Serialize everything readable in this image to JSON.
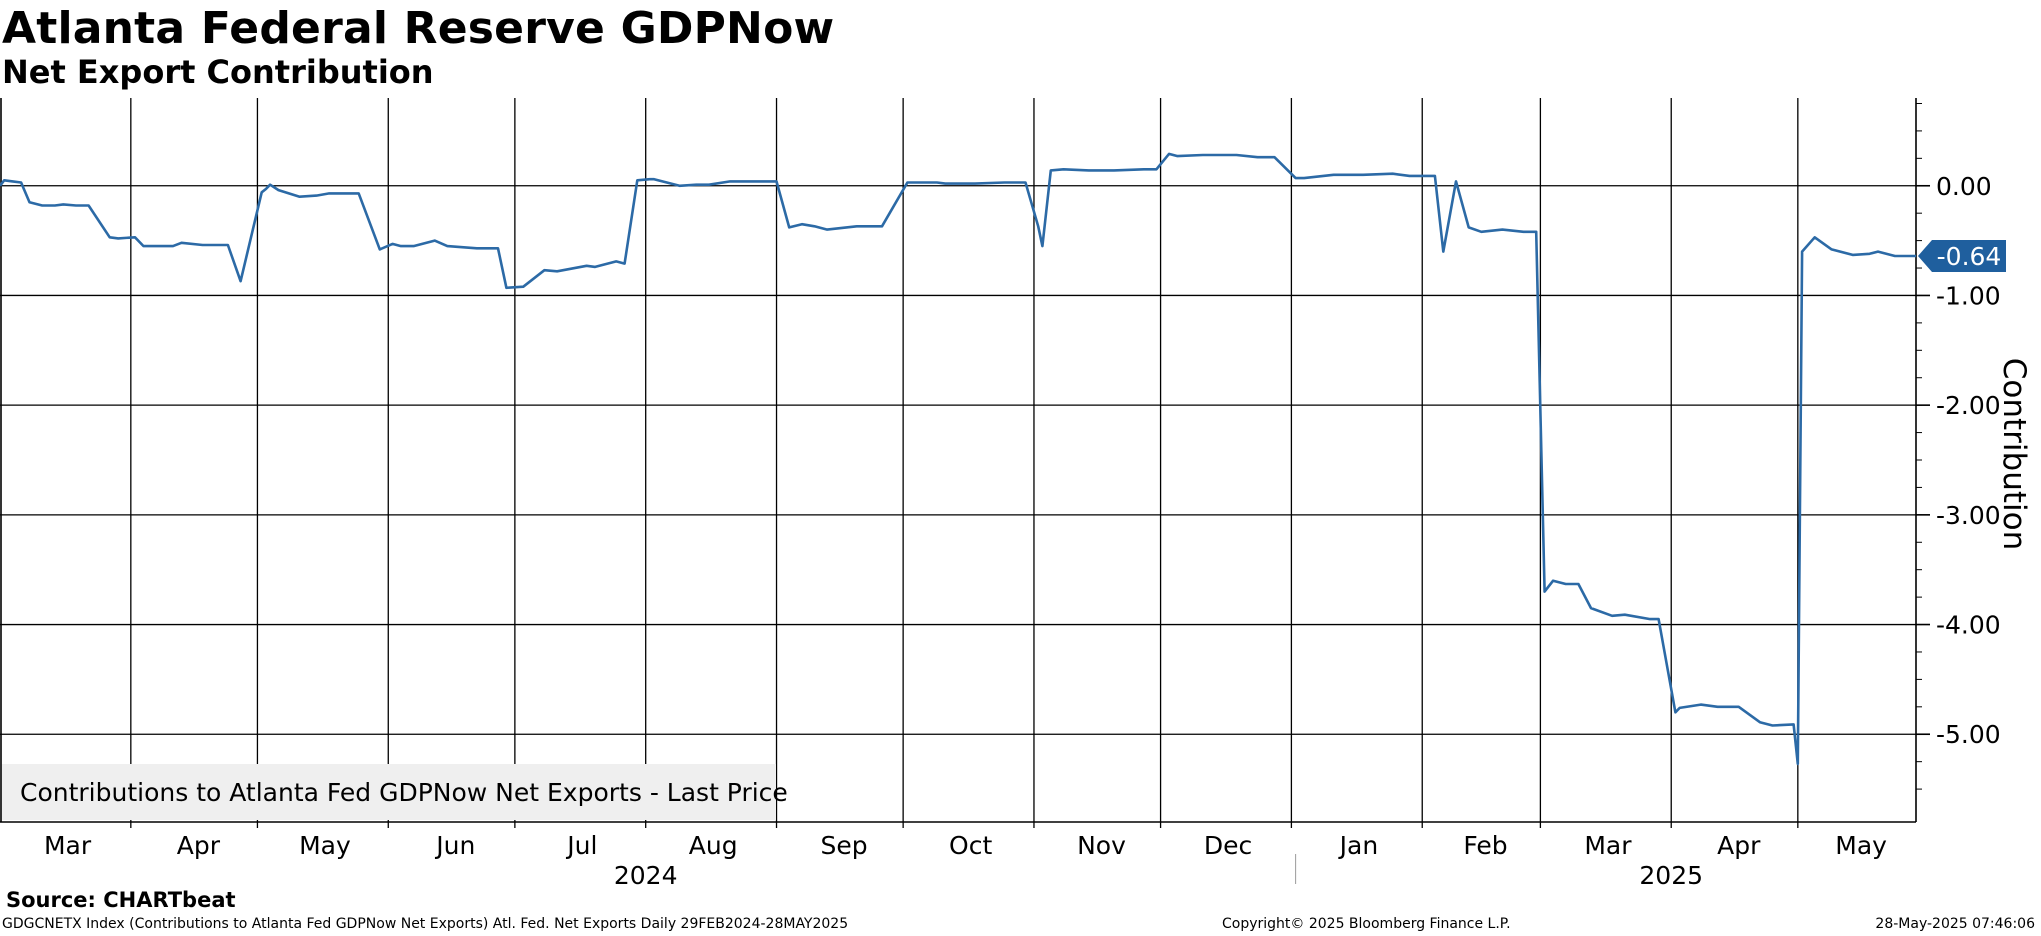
{
  "header": {
    "title": "Atlanta Federal Reserve GDPNow",
    "subtitle": "Net Export Contribution"
  },
  "legend": {
    "label": "Contributions to Atlanta Fed GDPNow Net Exports - Last Price"
  },
  "source": "Source: CHARTbeat",
  "footer": {
    "left": "GDGCNETX Index (Contributions to Atlanta Fed GDPNow Net Exports) Atl. Fed. Net Exports  Daily 29FEB2024-28MAY2025",
    "middle": "Copyright© 2025 Bloomberg Finance L.P.",
    "right": "28-May-2025 07:46:06"
  },
  "colors": {
    "series": "#2c6aa6",
    "grid": "#000000",
    "badge": "#1f5f9e",
    "legend_bg": "#efefef"
  },
  "chart_data": {
    "type": "line",
    "title": "Atlanta Federal Reserve GDPNow",
    "subtitle": "Net Export Contribution",
    "xlabel": "",
    "ylabel": "Contribution",
    "x_range": [
      "2024-02-29",
      "2025-05-28"
    ],
    "ylim": [
      -5.8,
      0.8
    ],
    "yticks": [
      0,
      -1,
      -2,
      -3,
      -4,
      -5
    ],
    "ytick_labels": [
      "0.00",
      "-1.00",
      "-2.00",
      "-3.00",
      "-4.00",
      "-5.00"
    ],
    "x_month_labels": [
      {
        "label": "Mar",
        "date": "2024-03-16"
      },
      {
        "label": "Apr",
        "date": "2024-04-16"
      },
      {
        "label": "May",
        "date": "2024-05-16"
      },
      {
        "label": "Jun",
        "date": "2024-06-16"
      },
      {
        "label": "Jul",
        "date": "2024-07-16"
      },
      {
        "label": "Aug",
        "date": "2024-08-16"
      },
      {
        "label": "Sep",
        "date": "2024-09-16"
      },
      {
        "label": "Oct",
        "date": "2024-10-16"
      },
      {
        "label": "Nov",
        "date": "2024-11-16"
      },
      {
        "label": "Dec",
        "date": "2024-12-16"
      },
      {
        "label": "Jan",
        "date": "2025-01-16"
      },
      {
        "label": "Feb",
        "date": "2025-02-15"
      },
      {
        "label": "Mar",
        "date": "2025-03-16"
      },
      {
        "label": "Apr",
        "date": "2025-04-16"
      },
      {
        "label": "May",
        "date": "2025-05-15"
      }
    ],
    "x_year_labels": [
      {
        "label": "2024",
        "date": "2024-07-31"
      },
      {
        "label": "2025",
        "date": "2025-03-31"
      }
    ],
    "year_divider": "2025-01-01",
    "vertical_grid_dates": [
      "2024-03-31",
      "2024-04-30",
      "2024-05-31",
      "2024-06-30",
      "2024-07-31",
      "2024-08-31",
      "2024-09-30",
      "2024-10-31",
      "2024-11-30",
      "2024-12-31",
      "2025-01-31",
      "2025-02-28",
      "2025-03-31",
      "2025-04-30"
    ],
    "last_value": -0.64,
    "last_value_label": "-0.64",
    "grid": true,
    "legend_position": "bottom-left",
    "series": [
      {
        "name": "Contributions to Atlanta Fed GDPNow Net Exports - Last Price",
        "x": [
          "2024-02-29",
          "2024-03-01",
          "2024-03-03",
          "2024-03-05",
          "2024-03-07",
          "2024-03-10",
          "2024-03-13",
          "2024-03-15",
          "2024-03-18",
          "2024-03-21",
          "2024-03-26",
          "2024-03-28",
          "2024-04-01",
          "2024-04-03",
          "2024-04-10",
          "2024-04-12",
          "2024-04-17",
          "2024-04-23",
          "2024-04-26",
          "2024-05-01",
          "2024-05-02",
          "2024-05-03",
          "2024-05-05",
          "2024-05-10",
          "2024-05-14",
          "2024-05-17",
          "2024-05-24",
          "2024-05-29",
          "2024-06-01",
          "2024-06-03",
          "2024-06-06",
          "2024-06-11",
          "2024-06-14",
          "2024-06-21",
          "2024-06-26",
          "2024-06-28",
          "2024-07-02",
          "2024-07-07",
          "2024-07-10",
          "2024-07-17",
          "2024-07-19",
          "2024-07-24",
          "2024-07-26",
          "2024-07-29",
          "2024-08-01",
          "2024-08-02",
          "2024-08-08",
          "2024-08-12",
          "2024-08-15",
          "2024-08-20",
          "2024-08-28",
          "2024-08-31",
          "2024-09-03",
          "2024-09-06",
          "2024-09-09",
          "2024-09-12",
          "2024-09-19",
          "2024-09-25",
          "2024-10-01",
          "2024-10-08",
          "2024-10-10",
          "2024-10-17",
          "2024-10-24",
          "2024-10-29",
          "2024-11-01",
          "2024-11-02",
          "2024-11-04",
          "2024-11-07",
          "2024-11-13",
          "2024-11-19",
          "2024-11-26",
          "2024-11-29",
          "2024-12-02",
          "2024-12-04",
          "2024-12-10",
          "2024-12-18",
          "2024-12-23",
          "2024-12-27",
          "2025-01-01",
          "2025-01-03",
          "2025-01-10",
          "2025-01-17",
          "2025-01-24",
          "2025-01-28",
          "2025-01-31",
          "2025-02-03",
          "2025-02-05",
          "2025-02-08",
          "2025-02-11",
          "2025-02-14",
          "2025-02-19",
          "2025-02-24",
          "2025-02-27",
          "2025-03-01",
          "2025-03-03",
          "2025-03-06",
          "2025-03-09",
          "2025-03-12",
          "2025-03-17",
          "2025-03-20",
          "2025-03-26",
          "2025-03-28",
          "2025-04-01",
          "2025-04-02",
          "2025-04-07",
          "2025-04-11",
          "2025-04-16",
          "2025-04-21",
          "2025-04-24",
          "2025-04-29",
          "2025-04-30",
          "2025-05-01",
          "2025-05-04",
          "2025-05-08",
          "2025-05-13",
          "2025-05-17",
          "2025-05-19",
          "2025-05-23",
          "2025-05-28"
        ],
        "y": [
          0.0,
          0.05,
          0.04,
          0.03,
          -0.15,
          -0.18,
          -0.18,
          -0.17,
          -0.18,
          -0.18,
          -0.47,
          -0.48,
          -0.47,
          -0.55,
          -0.55,
          -0.52,
          -0.54,
          -0.54,
          -0.87,
          -0.06,
          -0.03,
          0.01,
          -0.04,
          -0.1,
          -0.09,
          -0.07,
          -0.07,
          -0.58,
          -0.53,
          -0.55,
          -0.55,
          -0.5,
          -0.55,
          -0.57,
          -0.57,
          -0.93,
          -0.92,
          -0.77,
          -0.78,
          -0.73,
          -0.74,
          -0.69,
          -0.71,
          0.05,
          0.06,
          0.06,
          0.0,
          0.01,
          0.01,
          0.04,
          0.04,
          0.04,
          -0.38,
          -0.35,
          -0.37,
          -0.4,
          -0.37,
          -0.37,
          0.03,
          0.03,
          0.02,
          0.02,
          0.03,
          0.03,
          -0.37,
          -0.55,
          0.14,
          0.15,
          0.14,
          0.14,
          0.15,
          0.15,
          0.29,
          0.27,
          0.28,
          0.28,
          0.26,
          0.26,
          0.07,
          0.07,
          0.1,
          0.1,
          0.11,
          0.09,
          0.09,
          0.09,
          -0.6,
          0.04,
          -0.38,
          -0.42,
          -0.4,
          -0.42,
          -0.42,
          -3.7,
          -3.6,
          -3.63,
          -3.63,
          -3.85,
          -3.92,
          -3.91,
          -3.95,
          -3.95,
          -4.8,
          -4.76,
          -4.73,
          -4.75,
          -4.75,
          -4.89,
          -4.92,
          -4.91,
          -5.27,
          -0.6,
          -0.47,
          -0.58,
          -0.63,
          -0.62,
          -0.6,
          -0.64,
          -0.64
        ]
      }
    ]
  }
}
